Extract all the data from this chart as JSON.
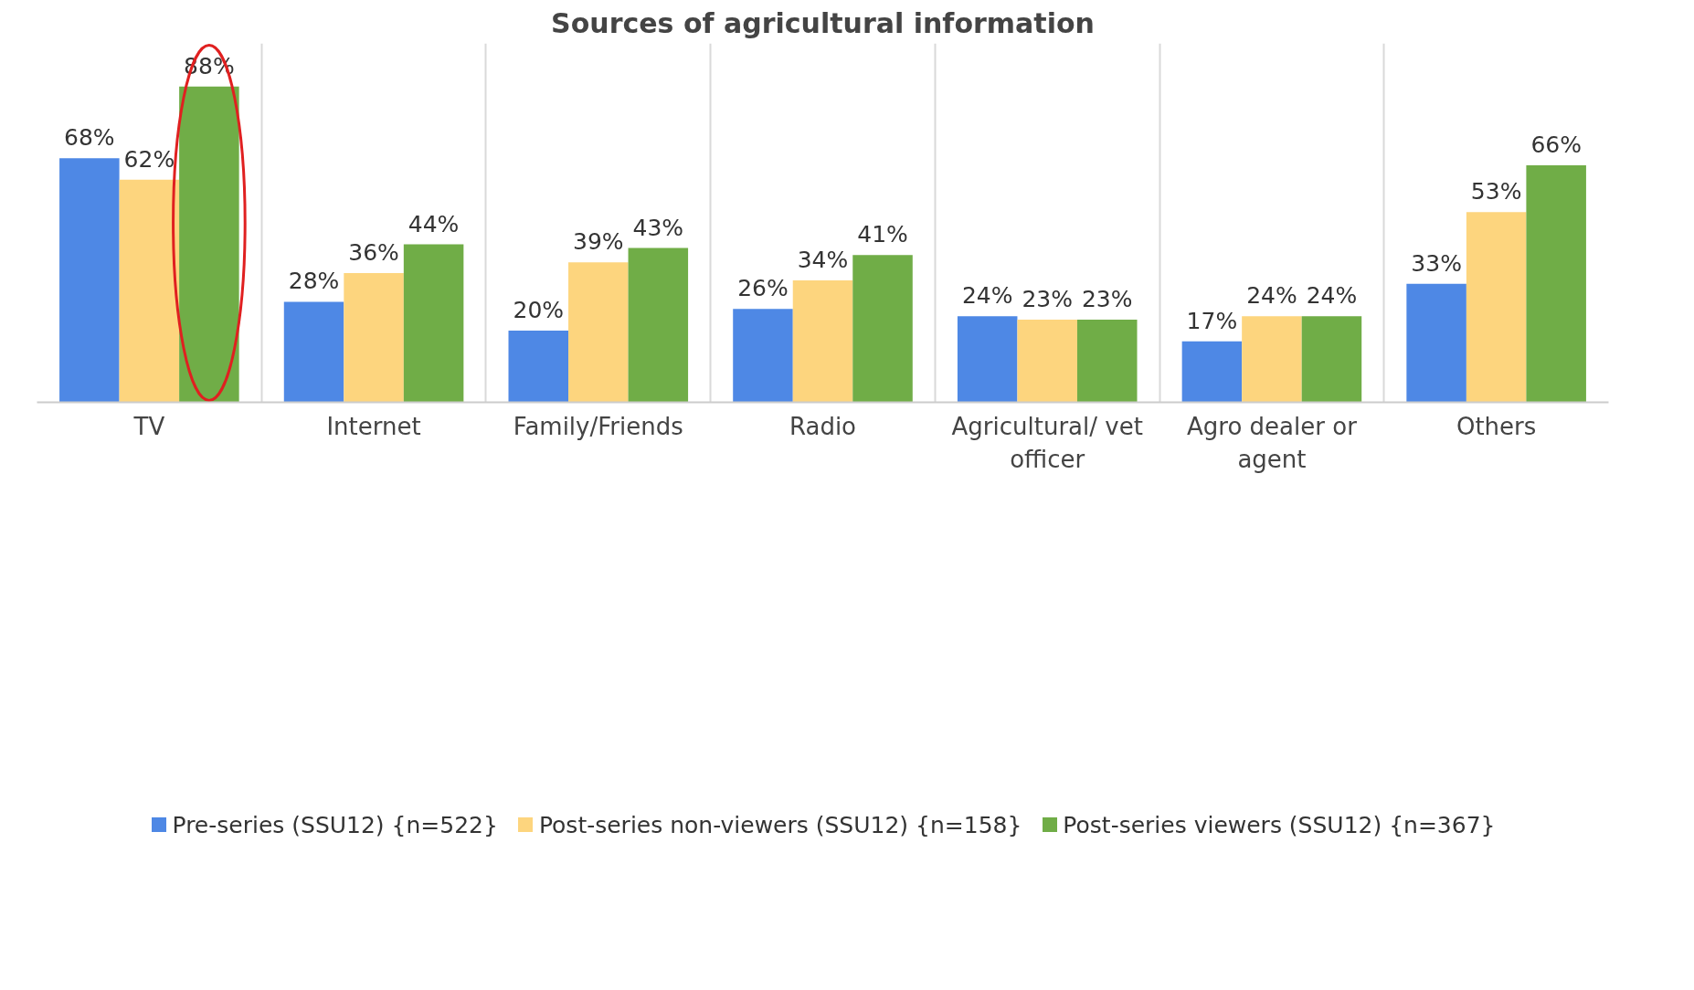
{
  "chart_data": {
    "type": "bar",
    "title": "Sources of agricultural information",
    "categories": [
      "TV",
      "Internet",
      "Family/Friends",
      "Radio",
      "Agricultural/ vet officer",
      "Agro dealer or agent",
      "Others"
    ],
    "series": [
      {
        "name": "Pre-series (SSU12) {n=522}",
        "color": "#4e88e5",
        "values": [
          68,
          28,
          20,
          26,
          24,
          17,
          33
        ],
        "value_labels": [
          "68%",
          "28%",
          "20%",
          "26%",
          "24%",
          "17%",
          "33%"
        ]
      },
      {
        "name": "Post-series non-viewers (SSU12) {n=158}",
        "color": "#fdd57e",
        "values": [
          62,
          36,
          39,
          34,
          23,
          24,
          53
        ],
        "value_labels": [
          "62%",
          "36%",
          "39%",
          "34%",
          "23%",
          "24%",
          "53%"
        ]
      },
      {
        "name": "Post-series viewers (SSU12) {n=367}",
        "color": "#70ad47",
        "values": [
          88,
          44,
          43,
          41,
          23,
          24,
          66
        ],
        "value_labels": [
          "88%",
          "44%",
          "43%",
          "41%",
          "23%",
          "24%",
          "66%"
        ]
      }
    ],
    "ylim": [
      0,
      100
    ],
    "tick_labels": "x",
    "grid": "x",
    "legend": "bottom"
  }
}
